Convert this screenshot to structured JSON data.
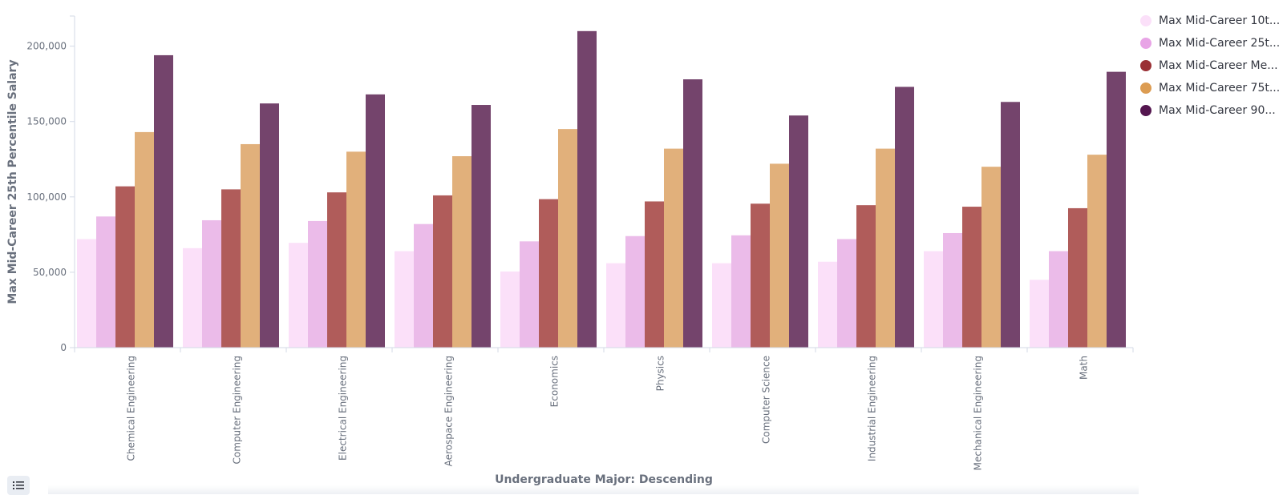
{
  "chart_data": {
    "type": "bar",
    "xlabel": "Undergraduate Major: Descending",
    "ylabel": "Max Mid-Career 25th Percentile Salary",
    "ylim": [
      0,
      220000
    ],
    "yticks": [
      0,
      50000,
      100000,
      150000,
      200000
    ],
    "ytick_labels": [
      "0",
      "50,000",
      "100,000",
      "150,000",
      "200,000"
    ],
    "categories": [
      "Chemical Engineering",
      "Computer Engineering",
      "Electrical Engineering",
      "Aerospace Engineering",
      "Economics",
      "Physics",
      "Computer Science",
      "Industrial Engineering",
      "Mechanical Engineering",
      "Math"
    ],
    "series": [
      {
        "name": "Max Mid-Career 10t...",
        "color": "#fbe0f9",
        "values": [
          72000,
          66000,
          69500,
          64000,
          50500,
          56000,
          56000,
          57000,
          64000,
          45000
        ]
      },
      {
        "name": "Max Mid-Career 25t...",
        "color": "#ebbbe9",
        "values": [
          87000,
          84500,
          84000,
          82000,
          70500,
          74000,
          74500,
          72000,
          76000,
          64000
        ]
      },
      {
        "name": "Max Mid-Career Me...",
        "color": "#b05c5a",
        "values": [
          107000,
          105000,
          103000,
          101000,
          98500,
          97000,
          95500,
          94500,
          93500,
          92500
        ]
      },
      {
        "name": "Max Mid-Career 75t...",
        "color": "#e1b07b",
        "values": [
          143000,
          135000,
          130000,
          127000,
          145000,
          132000,
          122000,
          132000,
          120000,
          128000
        ]
      },
      {
        "name": "Max Mid-Career 90...",
        "color": "#74446c",
        "values": [
          194000,
          162000,
          168000,
          161000,
          210000,
          178000,
          154000,
          173000,
          163000,
          183000
        ]
      }
    ],
    "legend_position": "right",
    "legend_dot_colors": [
      "#fbe0f9",
      "#e8a4e6",
      "#9a3035",
      "#dc9c52",
      "#54164f"
    ],
    "grid": false
  },
  "toolbar": {
    "icon": "list-icon"
  }
}
